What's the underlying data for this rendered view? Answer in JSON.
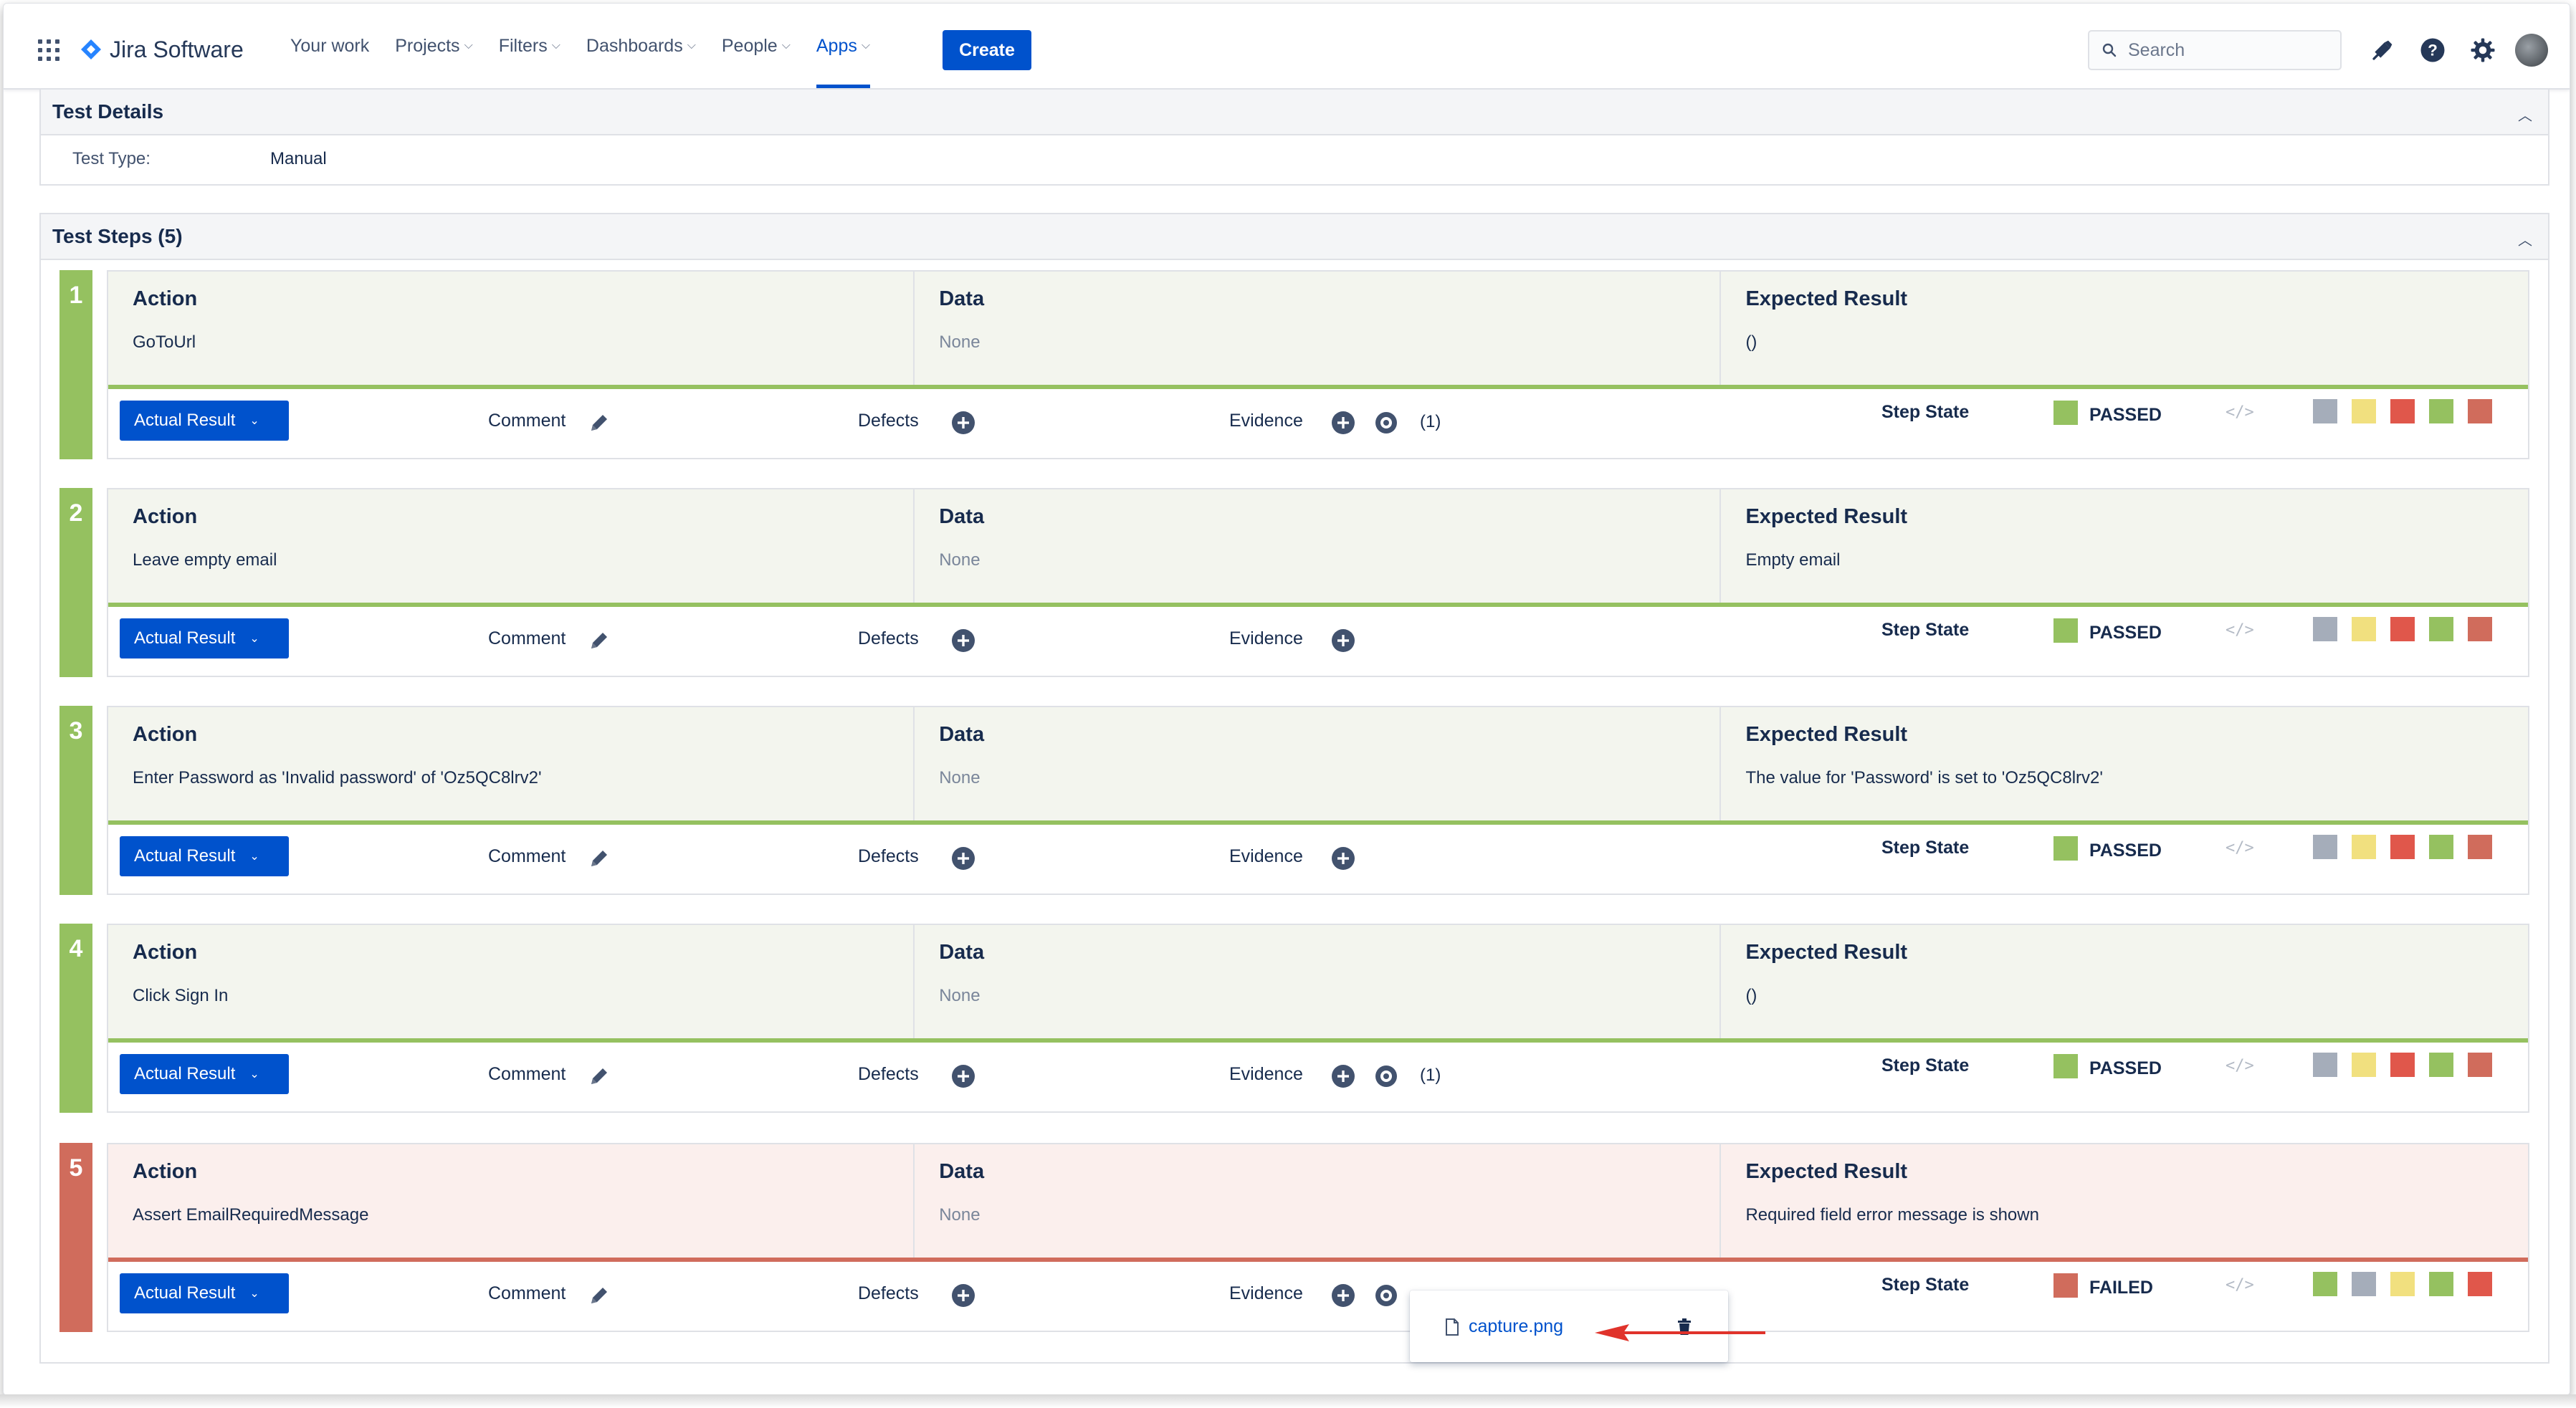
{
  "nav": {
    "app_name": "Jira Software",
    "links": [
      {
        "label": "Your work",
        "dropdown": false
      },
      {
        "label": "Projects",
        "dropdown": true
      },
      {
        "label": "Filters",
        "dropdown": true
      },
      {
        "label": "Dashboards",
        "dropdown": true
      },
      {
        "label": "People",
        "dropdown": true
      },
      {
        "label": "Apps",
        "dropdown": true,
        "active": true
      }
    ],
    "create_label": "Create",
    "search_placeholder": "Search",
    "icons": [
      "apps-grid-icon",
      "notifications-icon",
      "help-icon",
      "settings-icon",
      "avatar"
    ]
  },
  "test_details": {
    "title": "Test Details",
    "test_type_label": "Test Type:",
    "test_type_value": "Manual"
  },
  "test_steps": {
    "title": "Test Steps (5)",
    "col_action": "Action",
    "col_data": "Data",
    "col_expected": "Expected Result",
    "actual_result_label": "Actual Result",
    "comment_label": "Comment",
    "defects_label": "Defects",
    "evidence_label": "Evidence",
    "step_state_label": "Step State",
    "steps": [
      {
        "number": "1",
        "action": "GoToUrl",
        "data": "None",
        "expected": "()",
        "evidence_count": "(1)",
        "state": "PASSED",
        "state_color": "#95c160"
      },
      {
        "number": "2",
        "action": "Leave empty email",
        "data": "None",
        "expected": "Empty email",
        "evidence_count": "",
        "state": "PASSED",
        "state_color": "#95c160"
      },
      {
        "number": "3",
        "action": "Enter Password as 'Invalid password' of 'Oz5QC8lrv2'",
        "data": "None",
        "expected": "The value for 'Password' is set to 'Oz5QC8lrv2'",
        "evidence_count": "",
        "state": "PASSED",
        "state_color": "#95c160"
      },
      {
        "number": "4",
        "action": "Click Sign In",
        "data": "None",
        "expected": "()",
        "evidence_count": "(1)",
        "state": "PASSED",
        "state_color": "#95c160"
      },
      {
        "number": "5",
        "action": "Assert EmailRequiredMessage",
        "data": "None",
        "expected": "Required field error message is shown",
        "evidence_count": "",
        "state": "FAILED",
        "state_color": "#d06c5c"
      }
    ]
  },
  "evidence_popup": {
    "file_name": "capture.png"
  },
  "colors": {
    "primary": "#0052cc",
    "passed": "#95c160",
    "failed": "#d06c5c",
    "todo": "#a5adba",
    "executing": "#f1e07f",
    "aborted": "#e0574b"
  }
}
